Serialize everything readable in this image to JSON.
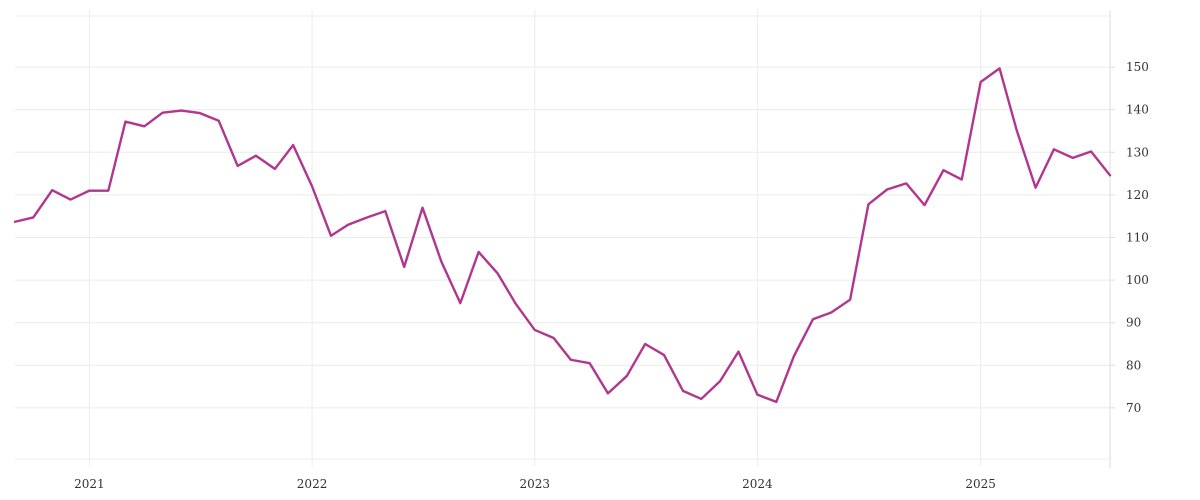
{
  "chart_data": {
    "type": "line",
    "title": "",
    "xlabel": "",
    "ylabel": "",
    "grid": true,
    "y_axis_position": "right",
    "ylim": [
      58,
      162
    ],
    "xlim": [
      "2020-09-01",
      "2025-08-01"
    ],
    "yticks": [
      70,
      80,
      90,
      100,
      110,
      120,
      130,
      140,
      150
    ],
    "xticks": [
      {
        "label": "2021",
        "x": "2021-01-01"
      },
      {
        "label": "2022",
        "x": "2022-01-01"
      },
      {
        "label": "2023",
        "x": "2023-01-01"
      },
      {
        "label": "2024",
        "x": "2024-01-01"
      },
      {
        "label": "2025",
        "x": "2025-01-01"
      }
    ],
    "colors": {
      "series": "#b0368e",
      "grid": "#ececec"
    },
    "series": [
      {
        "x": [
          "2020-09-01",
          "2020-10-01",
          "2020-11-01",
          "2020-12-01",
          "2021-01-01",
          "2021-02-01",
          "2021-03-01",
          "2021-04-01",
          "2021-05-01",
          "2021-06-01",
          "2021-07-01",
          "2021-08-01",
          "2021-09-01",
          "2021-10-01",
          "2021-11-01",
          "2021-12-01",
          "2022-01-01",
          "2022-02-01",
          "2022-03-01",
          "2022-04-01",
          "2022-05-01",
          "2022-06-01",
          "2022-07-01",
          "2022-08-01",
          "2022-09-01",
          "2022-10-01",
          "2022-11-01",
          "2022-12-01",
          "2023-01-01",
          "2023-02-01",
          "2023-03-01",
          "2023-04-01",
          "2023-05-01",
          "2023-06-01",
          "2023-07-01",
          "2023-08-01",
          "2023-09-01",
          "2023-10-01",
          "2023-11-01",
          "2023-12-01",
          "2024-01-01",
          "2024-02-01",
          "2024-03-01",
          "2024-04-01",
          "2024-05-01",
          "2024-06-01",
          "2024-07-01",
          "2024-08-01",
          "2024-09-01",
          "2024-10-01",
          "2024-11-01",
          "2024-12-01",
          "2025-01-01",
          "2025-02-01",
          "2025-03-01",
          "2025-04-01",
          "2025-05-01",
          "2025-06-01",
          "2025-07-01",
          "2025-08-01"
        ],
        "values": [
          113.7,
          114.7,
          121.1,
          118.9,
          121.0,
          121.0,
          137.2,
          136.1,
          139.3,
          139.8,
          139.2,
          137.4,
          126.8,
          129.2,
          126.1,
          131.7,
          122.0,
          110.4,
          113.0,
          114.7,
          116.2,
          103.1,
          117.0,
          104.3,
          94.6,
          106.6,
          101.6,
          94.4,
          88.3,
          86.4,
          81.3,
          80.5,
          73.4,
          77.5,
          85.0,
          82.4,
          74.0,
          72.1,
          76.3,
          83.2,
          73.1,
          71.4,
          82.2,
          90.8,
          92.4,
          95.4,
          117.8,
          121.3,
          122.7,
          117.6,
          125.8,
          123.6,
          146.5,
          149.7,
          135.2,
          121.7,
          130.7,
          128.7,
          130.2,
          124.6
        ]
      }
    ]
  }
}
